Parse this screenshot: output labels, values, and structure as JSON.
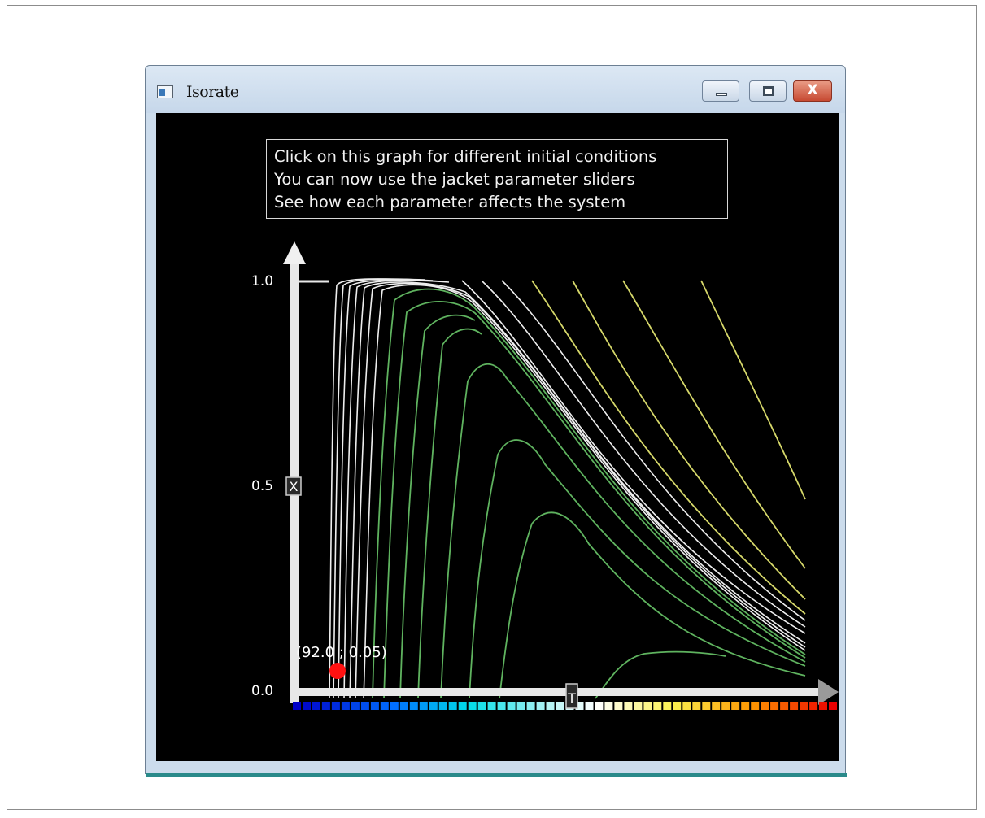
{
  "window": {
    "title": "Isorate",
    "close_glyph": "X",
    "icons": {
      "app": "app-icon",
      "minimize": "minimize-icon",
      "maximize": "maximize-icon",
      "close": "close-icon"
    }
  },
  "info_box": {
    "lines": [
      "Click on this graph for different initial conditions",
      "You can now use the jacket parameter sliders",
      "See how each parameter affects the system"
    ]
  },
  "readout": "(92.0 ; 0.05)",
  "chart_data": {
    "type": "line",
    "y_axis": {
      "marker": "X",
      "ticks": [
        "1.0",
        "0.5",
        "0.0"
      ]
    },
    "x_axis": {
      "marker": "T"
    },
    "colors": {
      "white": "#f0f0f0",
      "green": "#5fb35f",
      "yellow": "#d6d86a",
      "point": "#ff1111"
    }
  }
}
